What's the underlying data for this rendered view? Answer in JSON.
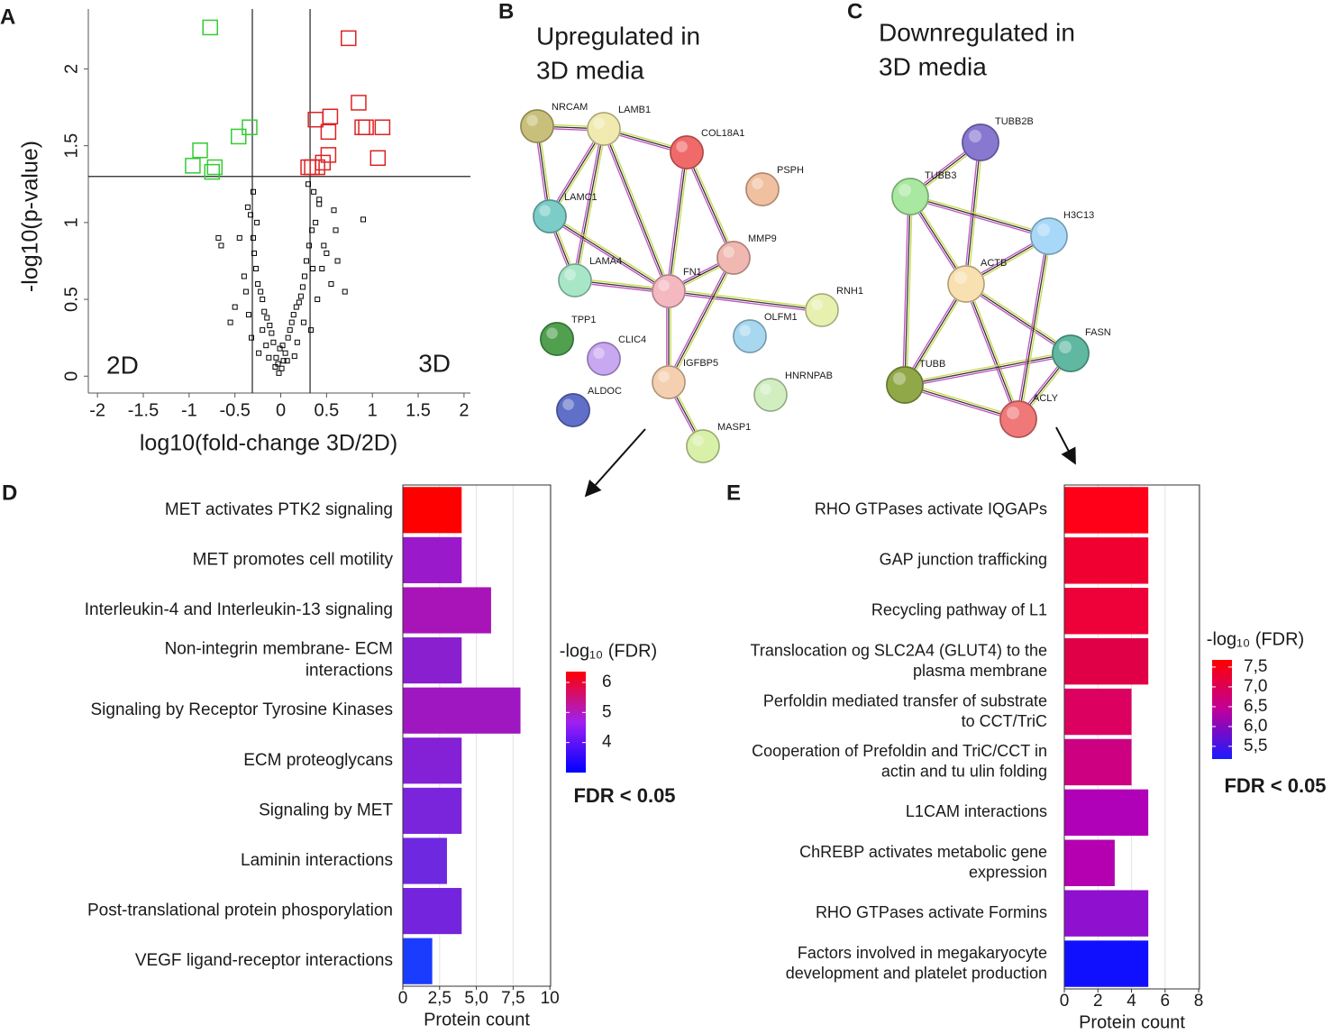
{
  "chart_data": [
    {
      "panel": "A",
      "type": "scatter",
      "xlabel": "log10(fold-change 3D/2D)",
      "ylabel": "-log10(p-value)",
      "xlim": [
        -2.1,
        2.07
      ],
      "ylim": [
        -0.11,
        2.39
      ],
      "xticks": [
        -2,
        -1.5,
        -1,
        -0.5,
        0,
        0.5,
        1,
        1.5,
        2
      ],
      "yticks": [
        0,
        0.5,
        1,
        1.5,
        2
      ],
      "vlines": [
        -0.31,
        0.32
      ],
      "hlines": [
        1.3
      ],
      "annotations": [
        "2D",
        "3D"
      ],
      "marker": "square",
      "series": [
        {
          "color": "#000000",
          "x": [
            -0.02,
            0.01,
            -0.03,
            0.03,
            -0.05,
            0.05,
            -0.01,
            0.02,
            -0.08,
            0.08,
            -0.1,
            0.1,
            -0.12,
            0.12,
            -0.15,
            0.14,
            -0.18,
            0.17,
            -0.2,
            0.2,
            -0.22,
            0.22,
            -0.25,
            0.24,
            -0.27,
            0.26,
            -0.29,
            0.28,
            -0.3,
            0.31,
            -0.33,
            0.34,
            -0.36,
            0.38,
            -0.4,
            0.42,
            -0.45,
            0.45,
            -0.5,
            0.5,
            -0.55,
            0.55,
            -0.65,
            0.6,
            -0.68,
            0.7,
            -0.3,
            0.3,
            -0.26,
            0.36,
            -0.35,
            0.4,
            -0.2,
            0.25,
            -0.24,
            0.33,
            -0.32,
            0.47,
            -0.38,
            0.62,
            0.9,
            0.58,
            0.42,
            0.18,
            -0.16,
            0.07,
            -0.06,
            0.15,
            -0.13,
            0.35
          ],
          "values": [
            0.02,
            0.05,
            0.08,
            0.1,
            0.12,
            0.15,
            0.18,
            0.2,
            0.22,
            0.25,
            0.28,
            0.3,
            0.33,
            0.35,
            0.38,
            0.4,
            0.42,
            0.45,
            0.5,
            0.48,
            0.55,
            0.52,
            0.6,
            0.58,
            0.7,
            0.65,
            0.8,
            0.75,
            0.9,
            0.85,
            1.05,
            0.95,
            1.1,
            1.0,
            0.65,
            1.15,
            0.9,
            0.7,
            0.45,
            0.8,
            0.35,
            0.6,
            0.85,
            0.95,
            0.9,
            0.55,
            1.2,
            1.25,
            1.0,
            1.2,
            0.4,
            0.5,
            0.3,
            0.35,
            0.15,
            0.3,
            0.25,
            0.85,
            0.55,
            0.75,
            1.02,
            1.08,
            1.12,
            0.22,
            0.2,
            0.1,
            0.06,
            0.13,
            0.12,
            0.7
          ]
        },
        {
          "color": "#33cc33",
          "x": [
            -0.77,
            -0.46,
            -0.34,
            -0.88,
            -0.96,
            -0.72,
            -0.75
          ],
          "values": [
            2.27,
            1.56,
            1.62,
            1.47,
            1.37,
            1.36,
            1.33
          ]
        },
        {
          "color": "#dd2222",
          "x": [
            0.74,
            0.85,
            0.54,
            0.38,
            0.89,
            1.11,
            0.93,
            0.52,
            0.52,
            1.06,
            0.46,
            0.34,
            0.4,
            0.3
          ],
          "values": [
            2.2,
            1.78,
            1.69,
            1.67,
            1.62,
            1.62,
            1.62,
            1.59,
            1.44,
            1.42,
            1.39,
            1.36,
            1.36,
            1.36
          ]
        }
      ]
    },
    {
      "panel": "D",
      "type": "bar",
      "orientation": "horizontal",
      "xlabel": "Protein count",
      "categories": [
        "MET activates PTK2 signaling",
        "MET  promotes cell motility",
        "Interleukin-4 and Interleukin-13 signaling",
        "Non-integrin membrane- ECM\ninteractions",
        "Signaling  by Receptor Tyrosine Kinases",
        "ECM proteoglycans",
        "Signaling  by MET",
        "Laminin interactions",
        "Post-translational protein phosporylation",
        "VEGF ligand-receptor interactions"
      ],
      "values": [
        4,
        4,
        6,
        4,
        8,
        4,
        4,
        3,
        4,
        2
      ],
      "colors": [
        "#ff0000",
        "#9a1acb",
        "#a814b8",
        "#8a1fd0",
        "#9f17c0",
        "#8420d6",
        "#7a24dc",
        "#6e28e0",
        "#7424dd",
        "#1a3cff"
      ],
      "xlim": [
        0,
        10.05
      ],
      "xticks": [
        0,
        {
          "value": 2.5,
          "label": "2,5"
        },
        {
          "value": 5,
          "label": "5,0"
        },
        {
          "value": 7.5,
          "label": "7,5"
        },
        10
      ],
      "grid": true,
      "colorbar": {
        "title": "-log₁₀ (FDR)",
        "clim": [
          3.0,
          6.36
        ],
        "ticks": [
          4,
          5,
          6
        ],
        "colors": [
          "#0000ff",
          "#a020f0",
          "#ff0000"
        ]
      },
      "note": "FDR < 0.05"
    },
    {
      "panel": "E",
      "type": "bar",
      "orientation": "horizontal",
      "xlabel": "Protein count",
      "categories": [
        "RHO GTPases activate IQGAPs",
        "GAP junction trafficking",
        "Recycling pathway  of L1",
        "Translocation og SLC2A4 (GLUT4) to the\nplasma membrane",
        "Perfoldin mediated transfer of substrate\nto CCT/TriC",
        "Cooperation of Prefoldin and TriC/CCT in\nactin and tu  ulin folding",
        "L1CAM interactions",
        "ChREBP activates metabolic gene\nexpression",
        "RHO GTPases activate Formins",
        "Factors involved in megakaryocyte\ndevelopment and platelet production"
      ],
      "values": [
        5,
        5,
        5,
        5,
        4,
        4,
        5,
        3,
        5,
        5
      ],
      "colors": [
        "#ff0018",
        "#f00030",
        "#ee0038",
        "#e00048",
        "#dc0060",
        "#cc0080",
        "#b000b8",
        "#b400b0",
        "#9010d0",
        "#1010ff"
      ],
      "xlim": [
        0,
        8.05
      ],
      "xticks": [
        0,
        2,
        4,
        6,
        8
      ],
      "grid": true,
      "colorbar": {
        "title": "-log₁₀ (FDR)",
        "clim": [
          5.18,
          7.68
        ],
        "ticks": [
          {
            "value": 5.5,
            "label": "5,5"
          },
          {
            "value": 6.0,
            "label": "6,0"
          },
          {
            "value": 6.5,
            "label": "6,5"
          },
          {
            "value": 7.0,
            "label": "7,0"
          },
          {
            "value": 7.5,
            "label": "7,5"
          }
        ],
        "colors": [
          "#1a1aff",
          "#c0009a",
          "#ff0000"
        ]
      },
      "note": "FDR < 0.05"
    }
  ],
  "networks": [
    {
      "panel": "B",
      "title_lines": [
        "Upregulated in",
        "3D media"
      ],
      "nodes": [
        {
          "label": "NRCAM",
          "color": "#c8c07a"
        },
        {
          "label": "LAMB1",
          "color": "#f0eab0"
        },
        {
          "label": "COL18A1",
          "color": "#f06a6a"
        },
        {
          "label": "PSPH",
          "color": "#f0c0a0"
        },
        {
          "label": "LAMC1",
          "color": "#7cccc8"
        },
        {
          "label": "MMP9",
          "color": "#f0b8b0"
        },
        {
          "label": "LAMA4",
          "color": "#a8e6c8"
        },
        {
          "label": "FN1",
          "color": "#f4b8c0"
        },
        {
          "label": "RNH1",
          "color": "#e8f0b0"
        },
        {
          "label": "OLFM1",
          "color": "#a8d8f0"
        },
        {
          "label": "TPP1",
          "color": "#50a050"
        },
        {
          "label": "CLIC4",
          "color": "#c8a8f0"
        },
        {
          "label": "IGFBP5",
          "color": "#f4d0b0"
        },
        {
          "label": "HNRNPAB",
          "color": "#d0eec0"
        },
        {
          "label": "ALDOC",
          "color": "#6070c8"
        },
        {
          "label": "MASP1",
          "color": "#d8f0a8"
        }
      ],
      "edges": [
        [
          0,
          1
        ],
        [
          0,
          4
        ],
        [
          1,
          4
        ],
        [
          1,
          6
        ],
        [
          1,
          7
        ],
        [
          1,
          2
        ],
        [
          4,
          6
        ],
        [
          4,
          7
        ],
        [
          6,
          7
        ],
        [
          2,
          7
        ],
        [
          2,
          5
        ],
        [
          5,
          7
        ],
        [
          7,
          8
        ],
        [
          7,
          12
        ],
        [
          5,
          12
        ],
        [
          12,
          15
        ]
      ]
    },
    {
      "panel": "C",
      "title_lines": [
        "Downregulated in",
        "3D media"
      ],
      "nodes": [
        {
          "label": "TUBB2B",
          "color": "#8878d0"
        },
        {
          "label": "TUBB3",
          "color": "#a8e8a0"
        },
        {
          "label": "H3C13",
          "color": "#a8d8f8"
        },
        {
          "label": "ACTB",
          "color": "#f8e0b0"
        },
        {
          "label": "FASN",
          "color": "#60b8a0"
        },
        {
          "label": "TUBB",
          "color": "#90a848"
        },
        {
          "label": "ACLY",
          "color": "#f07878"
        }
      ],
      "edges": [
        [
          0,
          1
        ],
        [
          0,
          3
        ],
        [
          1,
          3
        ],
        [
          1,
          2
        ],
        [
          2,
          3
        ],
        [
          3,
          5
        ],
        [
          3,
          6
        ],
        [
          3,
          4
        ],
        [
          5,
          4
        ],
        [
          5,
          6
        ],
        [
          4,
          6
        ],
        [
          2,
          6
        ],
        [
          1,
          5
        ]
      ]
    }
  ]
}
